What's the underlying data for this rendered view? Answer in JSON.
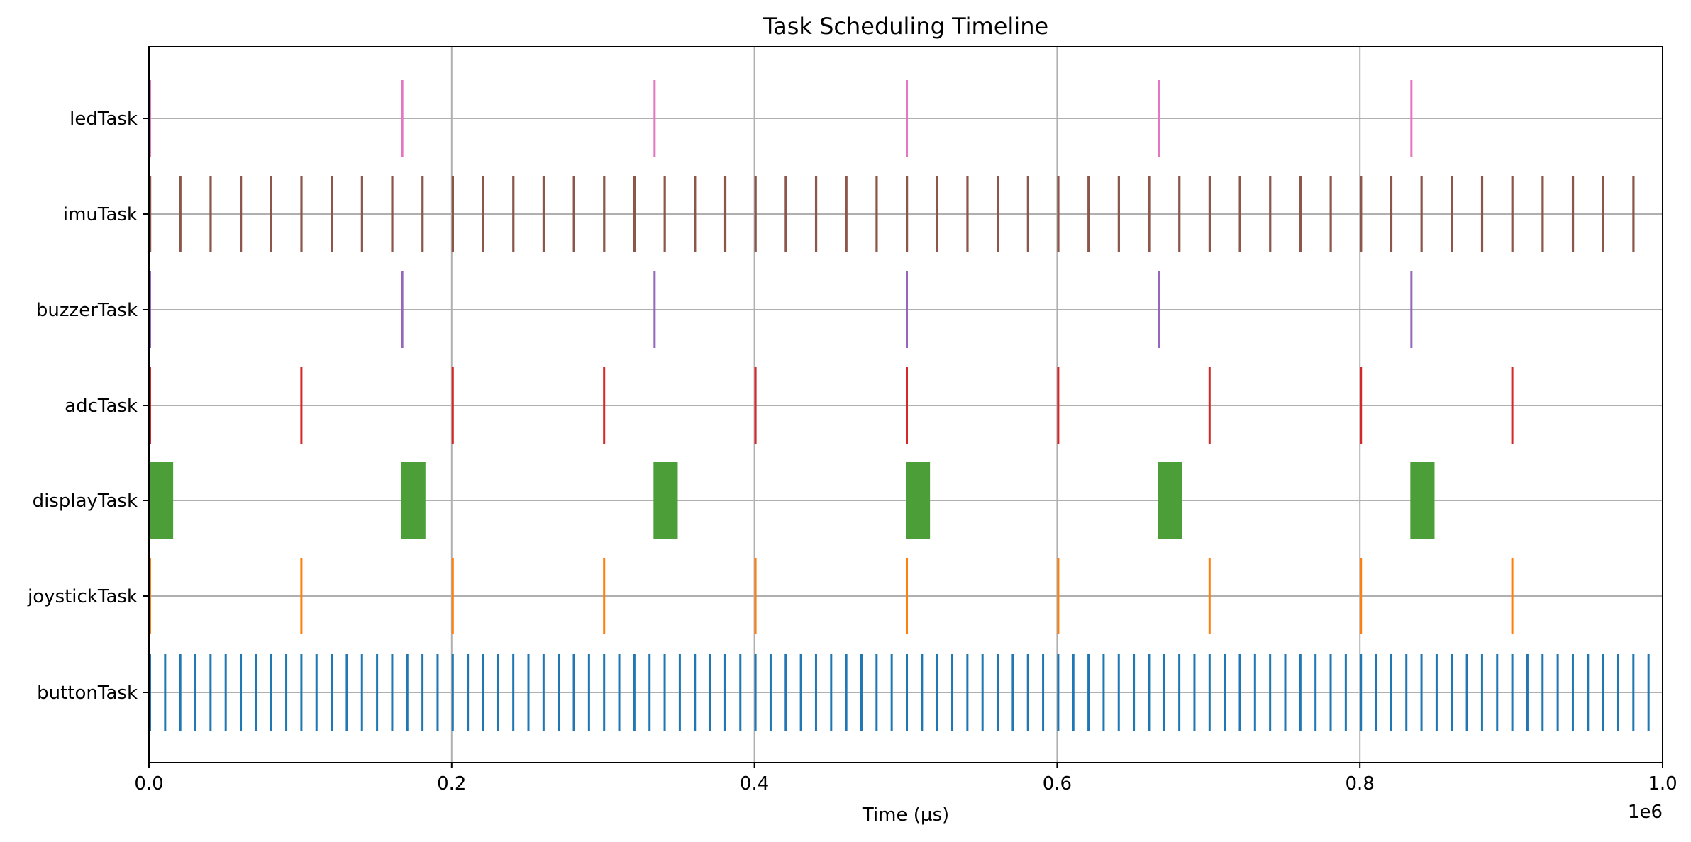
{
  "chart_data": {
    "type": "broken_barh",
    "title": "Task Scheduling Timeline",
    "xlabel": "Time (µs)",
    "ylabel": "",
    "x_offset_label": "1e6",
    "xlim": [
      0,
      1000000
    ],
    "x_ticks": [
      0,
      200000,
      400000,
      600000,
      800000,
      1000000
    ],
    "x_tick_labels": [
      "0.0",
      "0.2",
      "0.4",
      "0.6",
      "0.8",
      "1.0"
    ],
    "grid": true,
    "tasks": [
      {
        "name": "ledTask",
        "color": "#e377c2",
        "segments": [
          {
            "start": 0,
            "duration": 1200
          },
          {
            "start": 166667,
            "duration": 1200
          },
          {
            "start": 333333,
            "duration": 1200
          },
          {
            "start": 500000,
            "duration": 1200
          },
          {
            "start": 666667,
            "duration": 1200
          },
          {
            "start": 833333,
            "duration": 1200
          }
        ]
      },
      {
        "name": "imuTask",
        "color": "#8c564b",
        "period": 20000,
        "count": 50,
        "start": 0,
        "duration": 1500,
        "segments": []
      },
      {
        "name": "buzzerTask",
        "color": "#9467bd",
        "segments": [
          {
            "start": 0,
            "duration": 1200
          },
          {
            "start": 166667,
            "duration": 1200
          },
          {
            "start": 333333,
            "duration": 1200
          },
          {
            "start": 500000,
            "duration": 1200
          },
          {
            "start": 666667,
            "duration": 1200
          },
          {
            "start": 833333,
            "duration": 1200
          }
        ]
      },
      {
        "name": "adcTask",
        "color": "#d62728",
        "period": 100000,
        "count": 10,
        "start": 0,
        "duration": 1200,
        "segments": []
      },
      {
        "name": "displayTask",
        "color": "#4c9f38",
        "segments": [
          {
            "start": 0,
            "duration": 16000
          },
          {
            "start": 166667,
            "duration": 16000
          },
          {
            "start": 333333,
            "duration": 16000
          },
          {
            "start": 500000,
            "duration": 16000
          },
          {
            "start": 666667,
            "duration": 16000
          },
          {
            "start": 833333,
            "duration": 16000
          }
        ]
      },
      {
        "name": "joystickTask",
        "color": "#ff7f0e",
        "period": 100000,
        "count": 10,
        "start": 0,
        "duration": 1200,
        "segments": []
      },
      {
        "name": "buttonTask",
        "color": "#1f77b4",
        "period": 10000,
        "count": 100,
        "start": 0,
        "duration": 1200,
        "segments": []
      }
    ]
  }
}
